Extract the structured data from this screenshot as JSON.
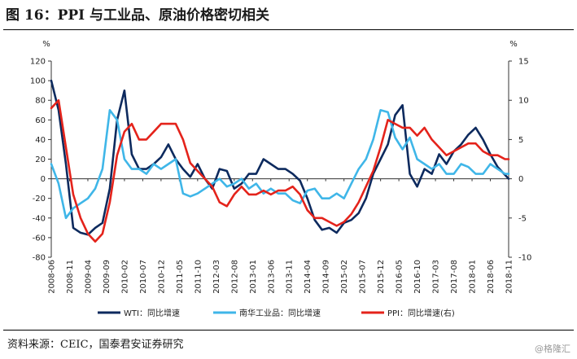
{
  "page": {
    "title": "图 16：PPI 与工业品、原油价格密切相关",
    "source": "资料来源：CEIC，国泰君安证券研究",
    "watermark": "@格隆汇"
  },
  "chart_data": {
    "type": "line",
    "left_axis": {
      "unit": "%",
      "ylim": [
        -80,
        120
      ],
      "ticks": [
        120,
        100,
        80,
        60,
        40,
        20,
        0,
        -20,
        -40,
        -60,
        -80
      ]
    },
    "right_axis": {
      "unit": "%",
      "ylim": [
        -10,
        15
      ],
      "ticks": [
        15,
        10,
        5,
        0,
        -5,
        -10
      ]
    },
    "x_tick_labels": [
      "2008-06",
      "2008-11",
      "2009-04",
      "2009-09",
      "2010-02",
      "2010-07",
      "2010-12",
      "2011-05",
      "2011-10",
      "2012-03",
      "2012-08",
      "2013-01",
      "2013-06",
      "2013-11",
      "2014-04",
      "2014-09",
      "2015-02",
      "2015-07",
      "2015-12",
      "2016-05",
      "2016-10",
      "2017-03",
      "2017-08",
      "2018-01",
      "2018-06",
      "2018-11"
    ],
    "x_range": [
      0,
      125
    ],
    "grid": false,
    "legend_position": "bottom",
    "colors": {
      "wti": "#0d2a5e",
      "nanhua": "#3fb6e8",
      "ppi": "#e4231b"
    },
    "series": [
      {
        "name": "WTI：同比增速",
        "axis": "left",
        "x": [
          0,
          2,
          4,
          6,
          8,
          10,
          12,
          14,
          16,
          18,
          20,
          22,
          24,
          26,
          28,
          30,
          32,
          34,
          36,
          38,
          40,
          42,
          44,
          46,
          48,
          50,
          52,
          54,
          56,
          58,
          60,
          62,
          64,
          66,
          68,
          70,
          72,
          74,
          76,
          78,
          80,
          82,
          84,
          86,
          88,
          90,
          92,
          94,
          96,
          98,
          100,
          102,
          104,
          106,
          108,
          110,
          112,
          114,
          116,
          118,
          120,
          122,
          124,
          125
        ],
        "y": [
          100,
          70,
          15,
          -50,
          -55,
          -57,
          -50,
          -45,
          -10,
          60,
          90,
          25,
          10,
          10,
          15,
          22,
          35,
          20,
          10,
          2,
          15,
          0,
          -10,
          10,
          8,
          -10,
          -5,
          5,
          5,
          20,
          15,
          10,
          10,
          5,
          -2,
          -20,
          -42,
          -52,
          -50,
          -55,
          -45,
          -42,
          -35,
          -20,
          5,
          20,
          35,
          65,
          75,
          5,
          -8,
          10,
          5,
          25,
          15,
          28,
          35,
          45,
          52,
          40,
          25,
          12,
          4,
          0
        ],
        "color_key": "wti"
      },
      {
        "name": "南华工业品：同比增速",
        "axis": "left",
        "x": [
          0,
          2,
          4,
          6,
          8,
          10,
          12,
          14,
          16,
          18,
          20,
          22,
          24,
          26,
          28,
          30,
          32,
          34,
          36,
          38,
          40,
          42,
          44,
          46,
          48,
          50,
          52,
          54,
          56,
          58,
          60,
          62,
          64,
          66,
          68,
          70,
          72,
          74,
          76,
          78,
          80,
          82,
          84,
          86,
          88,
          90,
          92,
          94,
          96,
          98,
          100,
          102,
          104,
          106,
          108,
          110,
          112,
          114,
          116,
          118,
          120,
          122,
          124,
          125
        ],
        "y": [
          15,
          -5,
          -40,
          -30,
          -25,
          -20,
          -10,
          10,
          70,
          60,
          20,
          10,
          10,
          5,
          15,
          10,
          15,
          20,
          -15,
          -18,
          -15,
          -10,
          -5,
          0,
          -8,
          -5,
          0,
          -10,
          -5,
          -15,
          -10,
          -15,
          -15,
          -22,
          -25,
          -12,
          -10,
          -20,
          -20,
          -15,
          -20,
          -5,
          10,
          20,
          40,
          70,
          68,
          42,
          30,
          42,
          20,
          15,
          10,
          15,
          5,
          5,
          15,
          12,
          5,
          5,
          15,
          10,
          5,
          5
        ],
        "color_key": "nanhua"
      },
      {
        "name": "PPI：同比增速(右)",
        "axis": "right",
        "x": [
          0,
          2,
          4,
          6,
          8,
          10,
          12,
          14,
          16,
          18,
          20,
          22,
          24,
          26,
          28,
          30,
          32,
          34,
          36,
          38,
          40,
          42,
          44,
          46,
          48,
          50,
          52,
          54,
          56,
          58,
          60,
          62,
          64,
          66,
          68,
          70,
          72,
          74,
          76,
          78,
          80,
          82,
          84,
          86,
          88,
          90,
          92,
          94,
          96,
          98,
          100,
          102,
          104,
          106,
          108,
          110,
          112,
          114,
          116,
          118,
          120,
          122,
          124,
          125
        ],
        "y": [
          9,
          10,
          4,
          -2,
          -5,
          -7,
          -8,
          -7,
          -3,
          3,
          6,
          7,
          5,
          5,
          6,
          7,
          7,
          7,
          5,
          2,
          1,
          0,
          -1,
          -3,
          -3.5,
          -2,
          -1,
          -2,
          -2,
          -1.5,
          -2,
          -1.5,
          -1.5,
          -1,
          -2,
          -4,
          -5,
          -5,
          -5.5,
          -6,
          -5.5,
          -4.5,
          -3,
          -1,
          1,
          4,
          7.5,
          7,
          6.5,
          6.5,
          5.5,
          6.5,
          5,
          4,
          3,
          3.5,
          4,
          4.5,
          4.5,
          3.5,
          3,
          3,
          2.5,
          2.5
        ],
        "color_key": "ppi"
      }
    ]
  }
}
